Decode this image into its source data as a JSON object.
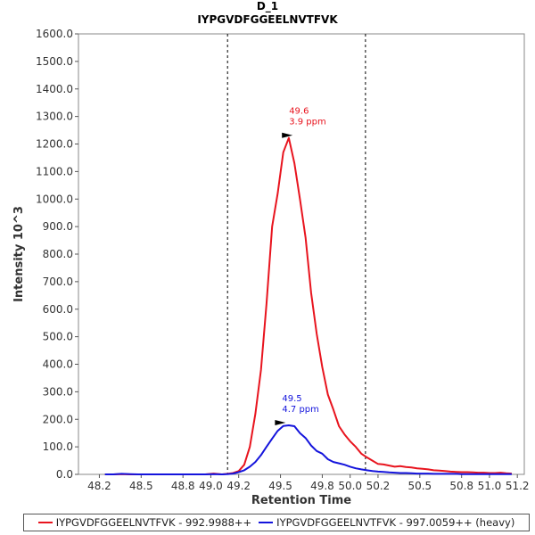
{
  "chart_data": {
    "type": "line",
    "title": "D_1",
    "subtitle": "IYPGVDFGGEELNVTFVK",
    "xlabel": "Retention Time",
    "ylabel": "Intensity 10^3",
    "xlim": [
      48.05,
      51.25
    ],
    "ylim": [
      0,
      1600
    ],
    "xticks": [
      48.2,
      48.5,
      48.8,
      49.0,
      49.2,
      49.5,
      49.8,
      50.0,
      50.2,
      50.5,
      50.8,
      51.0,
      51.2
    ],
    "yticks": [
      0.0,
      100.0,
      200.0,
      300.0,
      400.0,
      500.0,
      600.0,
      700.0,
      800.0,
      900.0,
      1000.0,
      1100.0,
      1200.0,
      1300.0,
      1400.0,
      1500.0,
      1600.0
    ],
    "boundaries": [
      49.12,
      50.11
    ],
    "series": [
      {
        "name": "IYPGVDFGGEELNVTFVK - 992.9988++",
        "color": "#e8141e",
        "x": [
          48.24,
          48.3,
          48.36,
          48.42,
          48.48,
          48.54,
          48.6,
          48.66,
          48.72,
          48.78,
          48.84,
          48.9,
          48.96,
          49.02,
          49.08,
          49.12,
          49.16,
          49.2,
          49.24,
          49.28,
          49.32,
          49.36,
          49.4,
          49.44,
          49.48,
          49.52,
          49.56,
          49.6,
          49.64,
          49.68,
          49.72,
          49.76,
          49.8,
          49.84,
          49.88,
          49.92,
          49.96,
          50.0,
          50.04,
          50.08,
          50.12,
          50.16,
          50.2,
          50.24,
          50.28,
          50.32,
          50.36,
          50.4,
          50.44,
          50.48,
          50.52,
          50.56,
          50.6,
          50.64,
          50.68,
          50.72,
          50.76,
          50.8,
          50.84,
          50.88,
          50.92,
          50.96,
          51.0,
          51.04,
          51.08,
          51.12,
          51.16
        ],
        "y": [
          0,
          0,
          1,
          0,
          0,
          0,
          0,
          0,
          0,
          0,
          0,
          0,
          0,
          3,
          0,
          2,
          5,
          12,
          35,
          100,
          220,
          380,
          620,
          900,
          1020,
          1170,
          1222,
          1130,
          1000,
          860,
          660,
          510,
          390,
          290,
          235,
          175,
          145,
          120,
          100,
          75,
          62,
          50,
          38,
          36,
          32,
          28,
          30,
          27,
          25,
          22,
          20,
          18,
          15,
          14,
          12,
          10,
          9,
          8,
          8,
          7,
          6,
          6,
          5,
          5,
          6,
          4,
          3
        ]
      },
      {
        "name": "IYPGVDFGGEELNVTFVK - 997.0059++ (heavy)",
        "color": "#1414dc",
        "x": [
          48.24,
          48.3,
          48.36,
          48.42,
          48.48,
          48.54,
          48.6,
          48.66,
          48.72,
          48.78,
          48.84,
          48.9,
          48.96,
          49.02,
          49.08,
          49.12,
          49.16,
          49.2,
          49.24,
          49.28,
          49.32,
          49.36,
          49.4,
          49.44,
          49.48,
          49.52,
          49.56,
          49.6,
          49.64,
          49.68,
          49.72,
          49.76,
          49.8,
          49.84,
          49.88,
          49.92,
          49.96,
          50.0,
          50.04,
          50.08,
          50.12,
          50.16,
          50.2,
          50.24,
          50.28,
          50.32,
          50.36,
          50.4,
          50.44,
          50.48,
          50.52,
          50.56,
          50.6,
          50.64,
          50.68,
          50.72,
          50.76,
          50.8,
          50.84,
          50.88,
          50.92,
          50.96,
          51.0,
          51.04,
          51.08,
          51.12,
          51.16
        ],
        "y": [
          0,
          0,
          2,
          1,
          0,
          0,
          0,
          0,
          0,
          0,
          0,
          0,
          0,
          1,
          0,
          1,
          3,
          8,
          15,
          28,
          45,
          70,
          100,
          130,
          158,
          176,
          178,
          175,
          150,
          132,
          105,
          85,
          75,
          55,
          45,
          40,
          35,
          28,
          22,
          18,
          15,
          12,
          10,
          9,
          7,
          6,
          5,
          5,
          4,
          3,
          3,
          3,
          2,
          2,
          2,
          2,
          2,
          1,
          1,
          1,
          1,
          1,
          1,
          1,
          1,
          1,
          1
        ]
      }
    ],
    "annotations": [
      {
        "series": 0,
        "x": 49.6,
        "y": 1222,
        "label_rt": "49.6",
        "label_ppm": "3.9 ppm"
      },
      {
        "series": 1,
        "x": 49.55,
        "y": 178,
        "label_rt": "49.5",
        "label_ppm": "4.7 ppm"
      }
    ],
    "legend_position": "bottom"
  }
}
